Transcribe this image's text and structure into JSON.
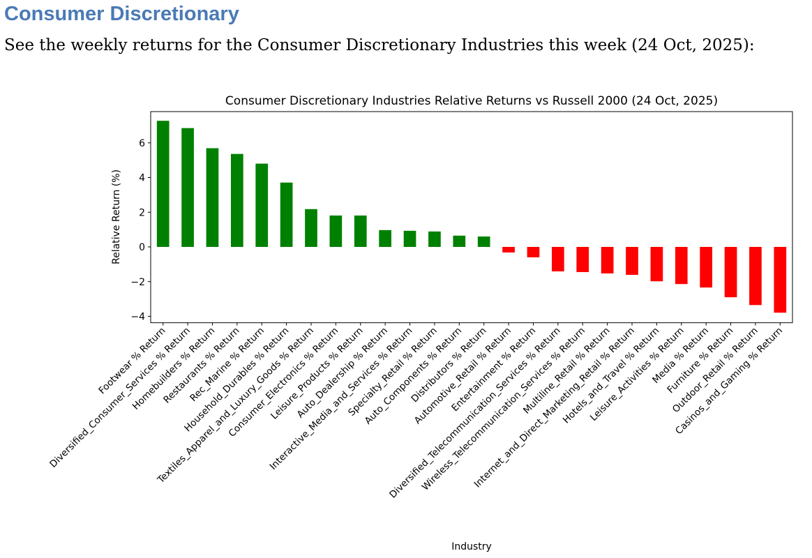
{
  "heading": "Consumer Discretionary",
  "intro": "See the weekly returns for the Consumer Discretionary Industries this week (24 Oct, 2025):",
  "chart_data": {
    "type": "bar",
    "title": "Consumer Discretionary Industries Relative Returns vs Russell 2000 (24 Oct, 2025)",
    "xlabel": "Industry",
    "ylabel": "Relative Return (%)",
    "ylim": [
      -4.37,
      7.8
    ],
    "yticks": [
      -4,
      -2,
      0,
      2,
      4,
      6
    ],
    "grid": false,
    "colors": {
      "positive": "#008000",
      "negative": "#ff0000"
    },
    "categories": [
      "Footwear % Return",
      "Diversified_Consumer_Services % Return",
      "Homebuilders % Return",
      "Restaurants % Return",
      "Rec_Marine % Return",
      "Household_Durables % Return",
      "Textiles_Apparel_and_Luxury_Goods % Return",
      "Consumer_Electronics % Return",
      "Leisure_Products % Return",
      "Auto_Dealership % Return",
      "Interactive_Media_and_Services % Return",
      "Specialty_Retail % Return",
      "Auto_Components % Return",
      "Distributors % Return",
      "Automotive_Retail % Return",
      "Entertainment % Return",
      "Diversified_Telecommunication_Services % Return",
      "Wireless_Telecommunication_Services % Return",
      "Multiline_Retail % Return",
      "Internet_and_Direct_Marketing_Retail % Return",
      "Hotels_and_Travel % Return",
      "Leisure_Activities % Return",
      "Media % Return",
      "Furniture % Return",
      "Outdoor_Retail % Return",
      "Casinos_and_Gaming % Return"
    ],
    "values": [
      7.27,
      6.85,
      5.69,
      5.36,
      4.8,
      3.71,
      2.18,
      1.81,
      1.81,
      0.97,
      0.93,
      0.89,
      0.65,
      0.6,
      -0.32,
      -0.6,
      -1.41,
      -1.45,
      -1.53,
      -1.61,
      -1.98,
      -2.14,
      -2.34,
      -2.9,
      -3.35,
      -3.79
    ]
  }
}
